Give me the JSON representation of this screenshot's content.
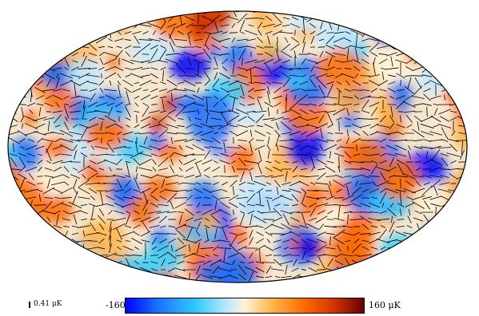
{
  "colorbar": {
    "min_label": "-160",
    "max_label": "160 μK",
    "min_value": -160,
    "max_value": 160,
    "unit": "μK",
    "colors": [
      "#0000ff",
      "#1a6fff",
      "#33ccff",
      "#bfe8ff",
      "#fff3d6",
      "#ffb347",
      "#ff6a00",
      "#cc3300",
      "#660000"
    ]
  },
  "polarization_scale": {
    "label": "0.41 μK",
    "value": 0.41
  }
}
